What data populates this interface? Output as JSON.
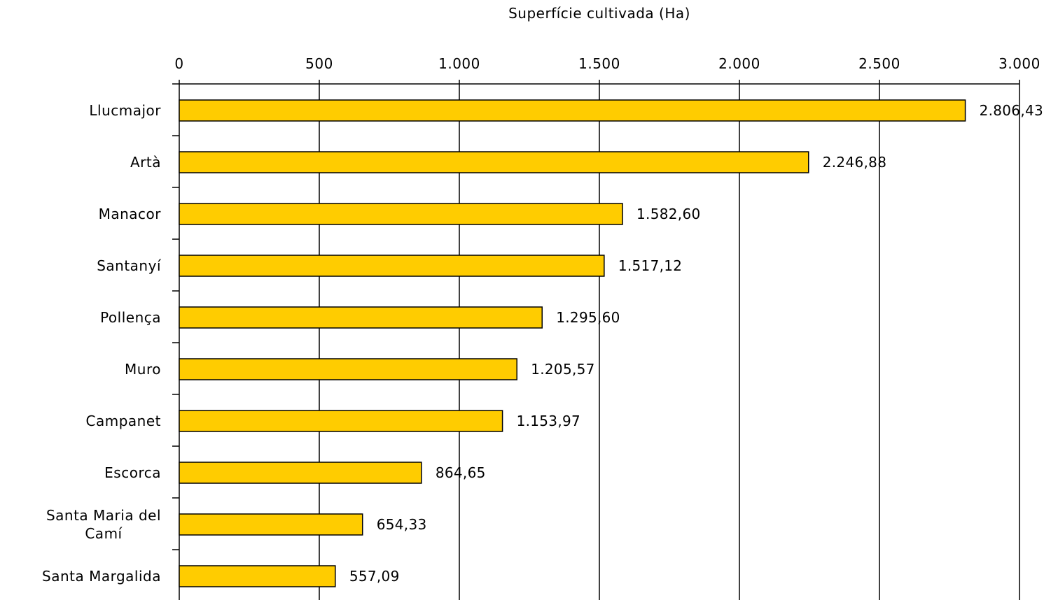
{
  "chart_data": {
    "type": "bar",
    "orientation": "horizontal",
    "title": "Superfície cultivada (Ha)",
    "xlim": [
      0,
      3000
    ],
    "x_ticks": [
      0,
      500,
      1000,
      1500,
      2000,
      2500,
      3000
    ],
    "x_tick_labels": [
      "0",
      "500",
      "1.000",
      "1.500",
      "2.000",
      "2.500",
      "3.000"
    ],
    "x_axis_position": "top",
    "grid": "vertical",
    "categories": [
      "Llucmajor",
      "Artà",
      "Manacor",
      "Santanyí",
      "Pollença",
      "Muro",
      "Campanet",
      "Escorca",
      "Santa Maria del Camí",
      "Santa Margalida"
    ],
    "category_label_lines": [
      [
        "Llucmajor"
      ],
      [
        "Artà"
      ],
      [
        "Manacor"
      ],
      [
        "Santanyí"
      ],
      [
        "Pollença"
      ],
      [
        "Muro"
      ],
      [
        "Campanet"
      ],
      [
        "Escorca"
      ],
      [
        "Santa Maria del",
        "Camí"
      ],
      [
        "Santa Margalida"
      ]
    ],
    "values": [
      2806.43,
      2246.88,
      1582.6,
      1517.12,
      1295.6,
      1205.57,
      1153.97,
      864.65,
      654.33,
      557.09
    ],
    "value_labels": [
      "2.806,43",
      "2.246,88",
      "1.582,60",
      "1.517,12",
      "1.295,60",
      "1.205,57",
      "1.153,97",
      "864,65",
      "654,33",
      "557,09"
    ],
    "bar_color": "#FFCC00",
    "bar_edge_color": "#000000"
  }
}
